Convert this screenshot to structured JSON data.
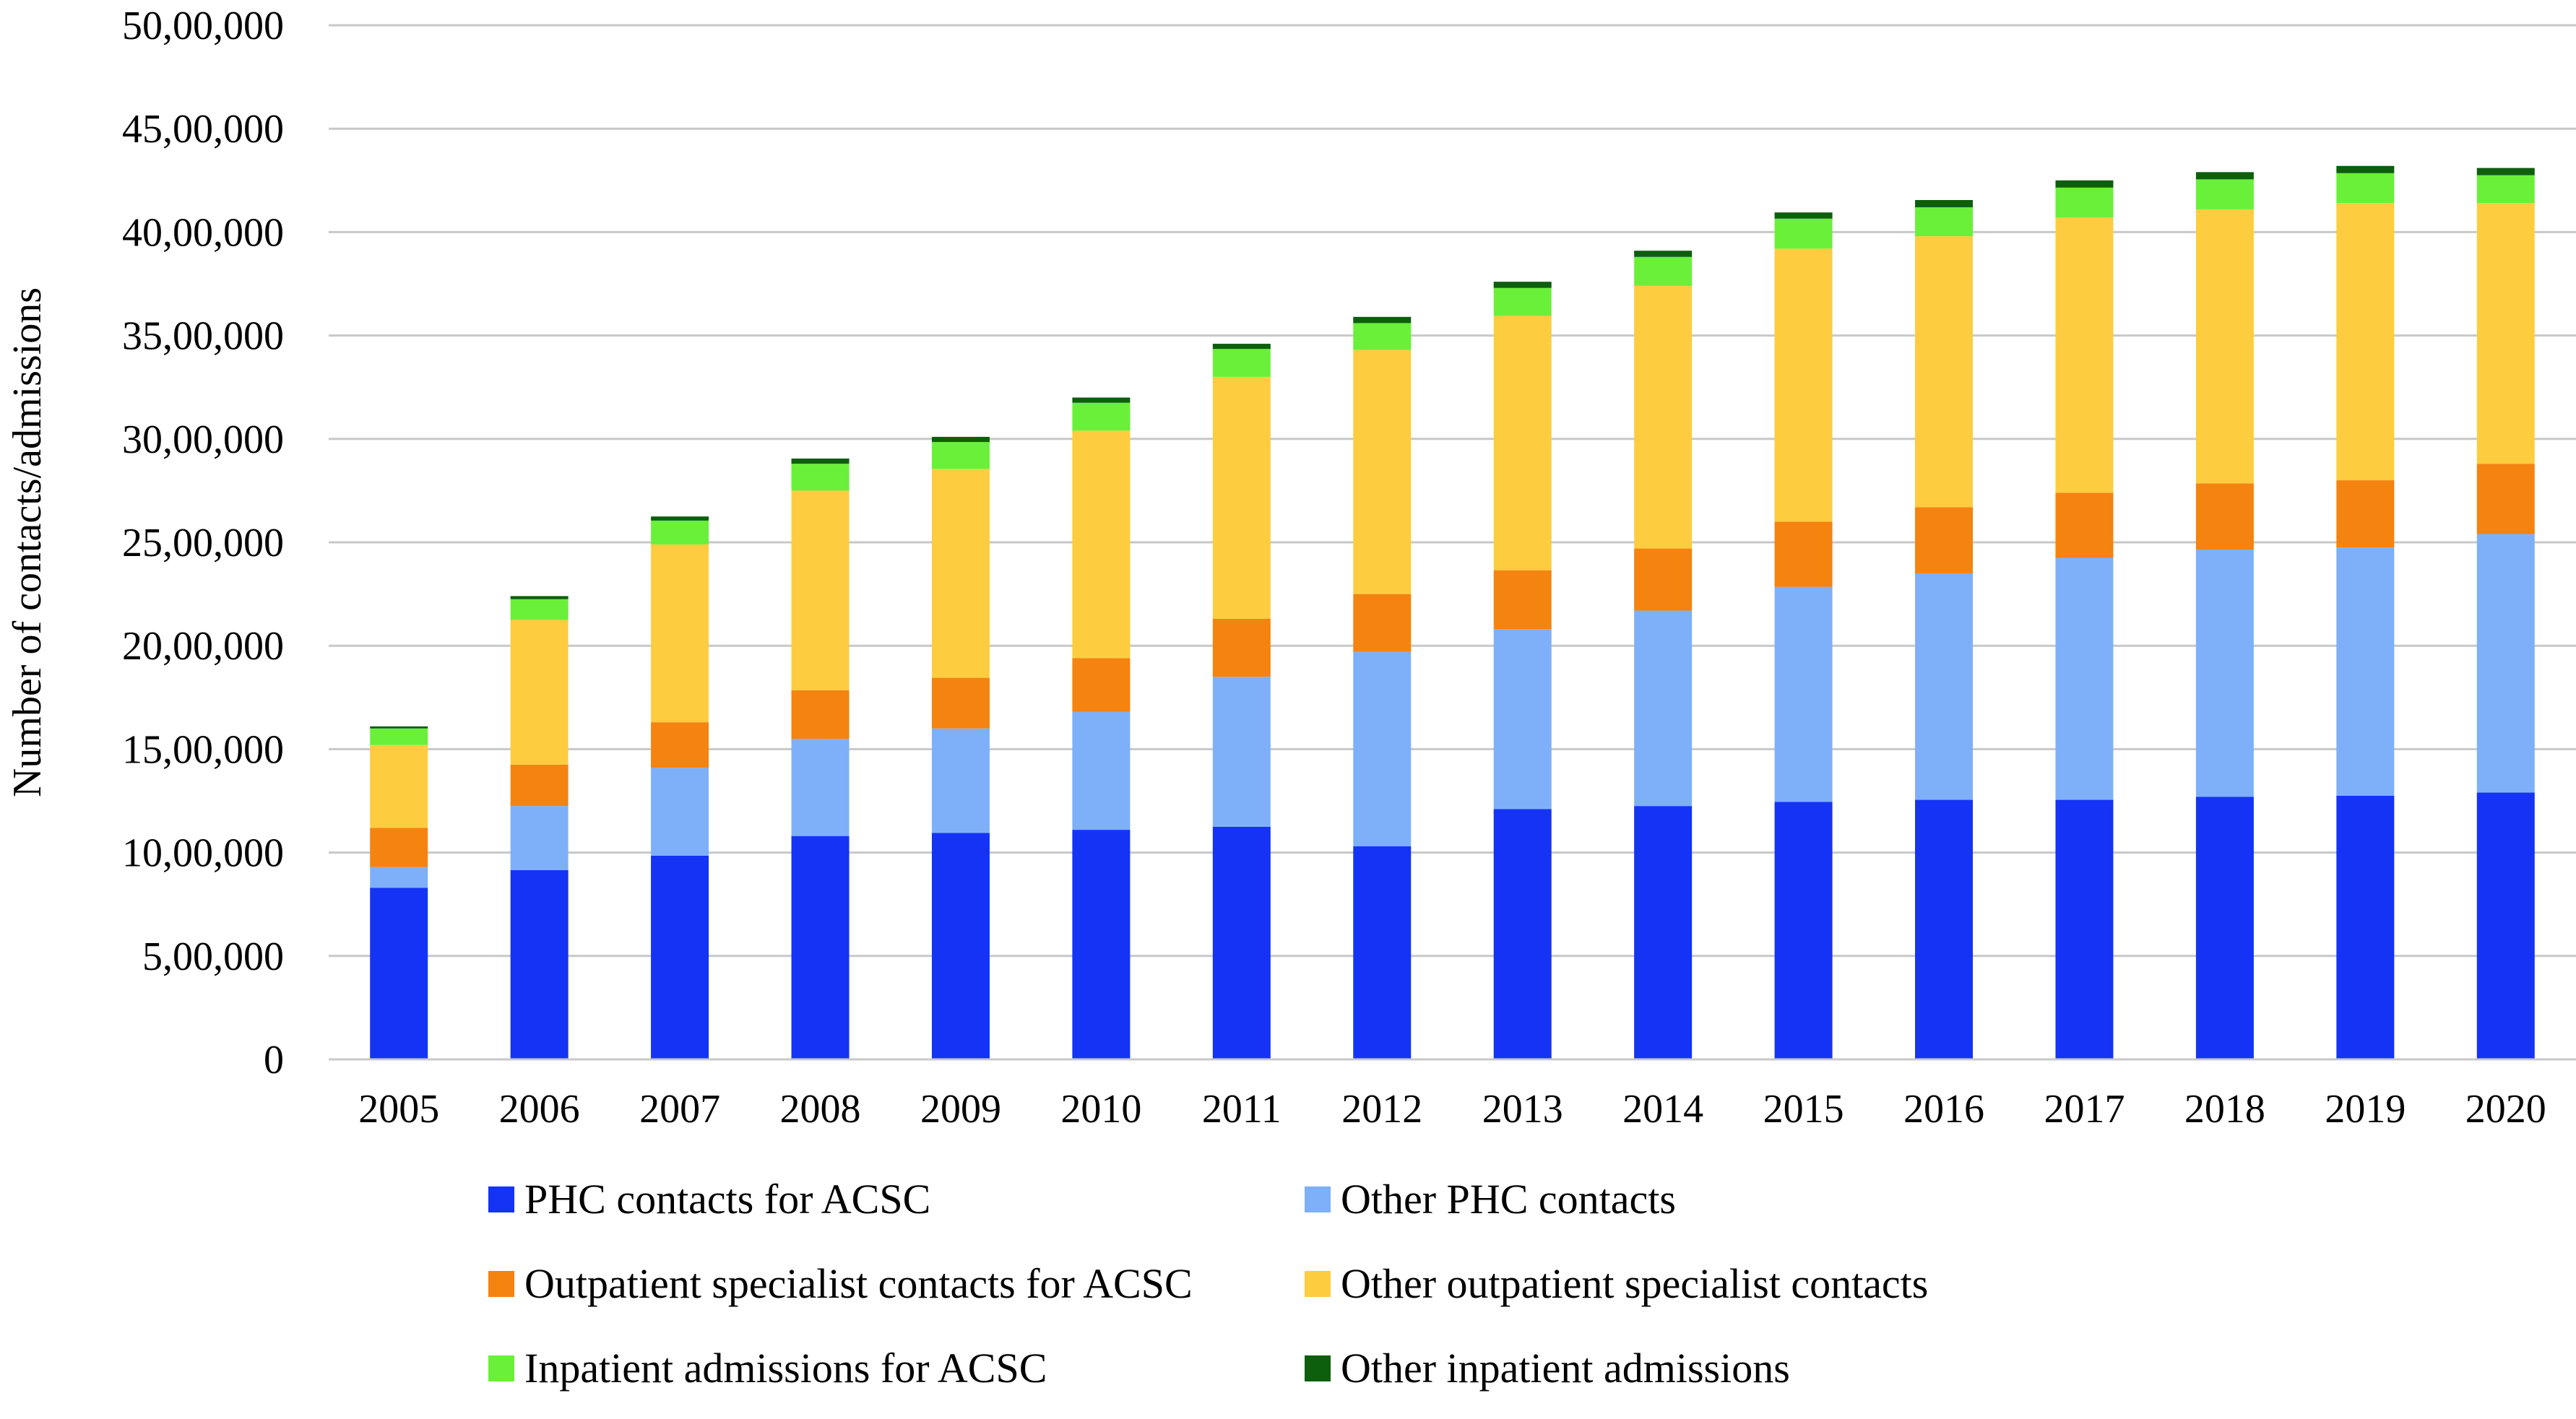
{
  "chart_data": {
    "type": "bar",
    "stacked": true,
    "title": "",
    "xlabel": "",
    "ylabel": "Number of contacts/admissions",
    "ylim": [
      0,
      5000000
    ],
    "yticks": [
      0,
      500000,
      1000000,
      1500000,
      2000000,
      2500000,
      3000000,
      3500000,
      4000000,
      4500000,
      5000000
    ],
    "ytick_labels": [
      "0",
      "5,00,000",
      "10,00,000",
      "15,00,000",
      "20,00,000",
      "25,00,000",
      "30,00,000",
      "35,00,000",
      "40,00,000",
      "45,00,000",
      "50,00,000"
    ],
    "grid": true,
    "legend_position": "bottom",
    "categories": [
      "2005",
      "2006",
      "2007",
      "2008",
      "2009",
      "2010",
      "2011",
      "2012",
      "2013",
      "2014",
      "2015",
      "2016",
      "2017",
      "2018",
      "2019",
      "2020"
    ],
    "series": [
      {
        "name": "PHC contacts for ACSC",
        "color": "#1433f5",
        "values": [
          830000,
          915000,
          985000,
          1080000,
          1095000,
          1110000,
          1125000,
          1030000,
          1210000,
          1225000,
          1245000,
          1255000,
          1255000,
          1270000,
          1275000,
          1290000
        ]
      },
      {
        "name": "Other PHC contacts",
        "color": "#7eb0f9",
        "values": [
          100000,
          310000,
          425000,
          470000,
          505000,
          570000,
          725000,
          940000,
          870000,
          945000,
          1040000,
          1095000,
          1170000,
          1195000,
          1200000,
          1250000
        ]
      },
      {
        "name": "Outpatient specialist contacts for ACSC",
        "color": "#f5830f",
        "values": [
          190000,
          200000,
          220000,
          235000,
          245000,
          260000,
          280000,
          280000,
          285000,
          300000,
          315000,
          320000,
          315000,
          320000,
          325000,
          340000
        ]
      },
      {
        "name": "Other outpatient specialist contacts",
        "color": "#fdcd3f",
        "values": [
          400000,
          700000,
          860000,
          965000,
          1010000,
          1100000,
          1170000,
          1180000,
          1230000,
          1270000,
          1320000,
          1310000,
          1330000,
          1325000,
          1340000,
          1260000
        ]
      },
      {
        "name": "Inpatient admissions for ACSC",
        "color": "#6af039",
        "values": [
          80000,
          100000,
          115000,
          130000,
          130000,
          135000,
          135000,
          130000,
          135000,
          140000,
          145000,
          140000,
          145000,
          145000,
          145000,
          135000
        ]
      },
      {
        "name": "Other inpatient admissions",
        "color": "#0d5e0d",
        "values": [
          10000,
          15000,
          20000,
          25000,
          25000,
          25000,
          25000,
          30000,
          30000,
          30000,
          30000,
          35000,
          35000,
          35000,
          35000,
          35000
        ]
      }
    ]
  }
}
